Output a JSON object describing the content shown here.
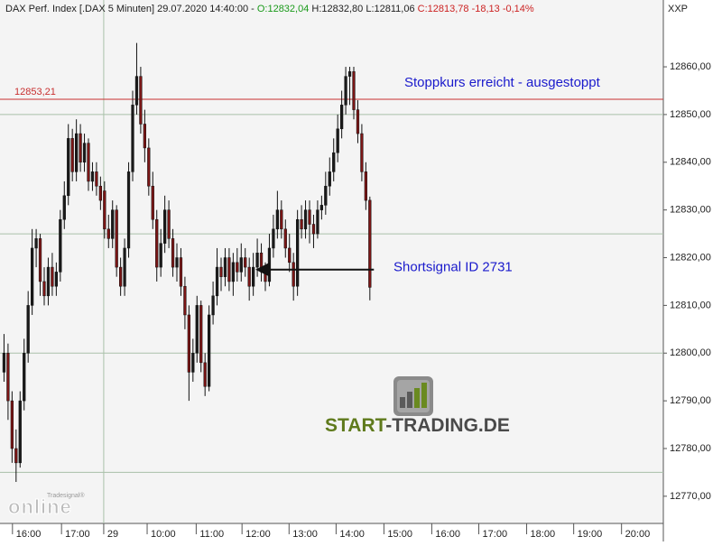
{
  "header": {
    "instrument": "DAX Perf. Index [.DAX  5 Minuten] 29.07.2020 14:40:00 -",
    "open": "O:12832,04",
    "high_low": "H:12832,80 L:12811,06",
    "close": "C:12813,78 -18,13 -0,14%",
    "symbol": "XXP"
  },
  "watermark": {
    "small": "Tradesignal®",
    "big": "online"
  },
  "brand": {
    "part1": "START",
    "part2": "-TRADING.DE"
  },
  "chart_data": {
    "type": "candlestick",
    "up_color": "#1a1a1a",
    "down_color": "#7a1515",
    "open": [
      12796,
      12800,
      12790,
      12780,
      12777,
      12790,
      12800,
      12810,
      12822,
      12824,
      12815,
      12812,
      12818,
      12814,
      12817,
      12828,
      12833,
      12845,
      12838,
      12846,
      12840,
      12844,
      12836,
      12838,
      12835,
      12834,
      12826,
      12824,
      12830,
      12818,
      12814,
      12822,
      12838,
      12852,
      12858,
      12848,
      12843,
      12835,
      12828,
      12818,
      12823,
      12830,
      12824,
      12818,
      12820,
      12814,
      12808,
      12796,
      12800,
      12810,
      12798,
      12793,
      12808,
      12812,
      12818,
      12816,
      12820,
      12815,
      12819,
      12817,
      12820,
      12818,
      12814,
      12818,
      12821,
      12817,
      12815,
      12822,
      12826,
      12830,
      12826,
      12822,
      12819,
      12814,
      12828,
      12826,
      12830,
      12827,
      12825,
      12830,
      12831,
      12835,
      12838,
      12842,
      12847,
      12852,
      12858,
      12859,
      12851,
      12846,
      12838,
      12832.04
    ],
    "high": [
      12804,
      12802,
      12792,
      12784,
      12792,
      12803,
      12813,
      12826,
      12826,
      12825,
      12818,
      12820,
      12821,
      12819,
      12830,
      12836,
      12848,
      12847,
      12849,
      12848,
      12846,
      12845,
      12840,
      12840,
      12837,
      12836,
      12829,
      12832,
      12831,
      12820,
      12824,
      12840,
      12855,
      12865,
      12860,
      12851,
      12845,
      12838,
      12830,
      12826,
      12833,
      12832,
      12826,
      12823,
      12822,
      12816,
      12810,
      12803,
      12812,
      12811,
      12800,
      12810,
      12815,
      12822,
      12820,
      12822,
      12822,
      12821,
      12822,
      12823,
      12822,
      12820,
      12821,
      12824,
      12823,
      12819,
      12825,
      12829,
      12834,
      12832,
      12828,
      12825,
      12821,
      12830,
      12831,
      12832,
      12832,
      12829,
      12832,
      12833,
      12838,
      12841,
      12845,
      12850,
      12855,
      12860,
      12860,
      12860,
      12853,
      12848,
      12840,
      12832.8
    ],
    "low": [
      12794,
      12786,
      12777,
      12773,
      12776,
      12788,
      12798,
      12808,
      12818,
      12812,
      12810,
      12810,
      12812,
      12812,
      12815,
      12826,
      12831,
      12836,
      12836,
      12838,
      12838,
      12834,
      12834,
      12833,
      12830,
      12824,
      12822,
      12822,
      12816,
      12812,
      12812,
      12820,
      12836,
      12850,
      12846,
      12840,
      12833,
      12826,
      12815,
      12816,
      12821,
      12822,
      12816,
      12815,
      12812,
      12805,
      12790,
      12794,
      12798,
      12796,
      12791,
      12792,
      12806,
      12810,
      12813,
      12814,
      12813,
      12812,
      12815,
      12815,
      12816,
      12811,
      12812,
      12816,
      12815,
      12813,
      12814,
      12820,
      12824,
      12824,
      12820,
      12817,
      12811,
      12812,
      12824,
      12824,
      12823,
      12822,
      12824,
      12828,
      12829,
      12833,
      12836,
      12840,
      12845,
      12850,
      12852,
      12849,
      12844,
      12836,
      12830,
      12811.06
    ],
    "close": [
      12800,
      12790,
      12780,
      12777,
      12790,
      12800,
      12810,
      12822,
      12824,
      12815,
      12812,
      12818,
      12814,
      12817,
      12828,
      12833,
      12845,
      12838,
      12846,
      12840,
      12844,
      12836,
      12838,
      12835,
      12832,
      12826,
      12824,
      12830,
      12818,
      12814,
      12822,
      12838,
      12852,
      12858,
      12848,
      12843,
      12835,
      12828,
      12818,
      12823,
      12830,
      12824,
      12818,
      12820,
      12814,
      12808,
      12796,
      12800,
      12810,
      12798,
      12793,
      12808,
      12812,
      12818,
      12816,
      12820,
      12815,
      12819,
      12817,
      12820,
      12818,
      12814,
      12818,
      12821,
      12817,
      12815,
      12822,
      12826,
      12830,
      12826,
      12822,
      12819,
      12814,
      12828,
      12826,
      12830,
      12827,
      12825,
      12830,
      12831,
      12835,
      12838,
      12842,
      12847,
      12852,
      12858,
      12859,
      12851,
      12846,
      12838,
      12832,
      12813.78
    ],
    "xlim": [
      -1,
      164
    ],
    "xticks": [
      {
        "value": 2.1,
        "label": "16:00"
      },
      {
        "value": 14.3,
        "label": "17:00"
      },
      {
        "value": 24.8,
        "label": "29"
      },
      {
        "value": 35.6,
        "label": "10:00"
      },
      {
        "value": 47.8,
        "label": "11:00"
      },
      {
        "value": 59.2,
        "label": "12:00"
      },
      {
        "value": 70.9,
        "label": "13:00"
      },
      {
        "value": 82.6,
        "label": "14:00"
      },
      {
        "value": 94.5,
        "label": "15:00"
      },
      {
        "value": 106.4,
        "label": "16:00"
      },
      {
        "value": 118.1,
        "label": "17:00"
      },
      {
        "value": 130,
        "label": "18:00"
      },
      {
        "value": 141.7,
        "label": "19:00"
      },
      {
        "value": 153.6,
        "label": "20:00"
      }
    ],
    "xgrid": [
      24.8
    ],
    "ylim": [
      12764.3,
      12870.6
    ],
    "yticks": [
      {
        "value": 12770,
        "label": "12770,00"
      },
      {
        "value": 12780,
        "label": "12780,00"
      },
      {
        "value": 12790,
        "label": "12790,00"
      },
      {
        "value": 12800,
        "label": "12800,00"
      },
      {
        "value": 12810,
        "label": "12810,00"
      },
      {
        "value": 12820,
        "label": "12820,00"
      },
      {
        "value": 12830,
        "label": "12830,00"
      },
      {
        "value": 12840,
        "label": "12840,00"
      },
      {
        "value": 12850,
        "label": "12850,00"
      },
      {
        "value": 12860,
        "label": "12860,00"
      }
    ],
    "ygrid": [
      12775,
      12800,
      12825,
      12850
    ],
    "stop_line": {
      "value": 12853.21,
      "label": "12853,21",
      "color": "#c83030",
      "text": "Stoppkurs erreicht - ausgestoppt"
    },
    "signal": {
      "value": 12817.5,
      "from": 92,
      "to": 63,
      "text": "Shortsignal ID 2731"
    }
  }
}
